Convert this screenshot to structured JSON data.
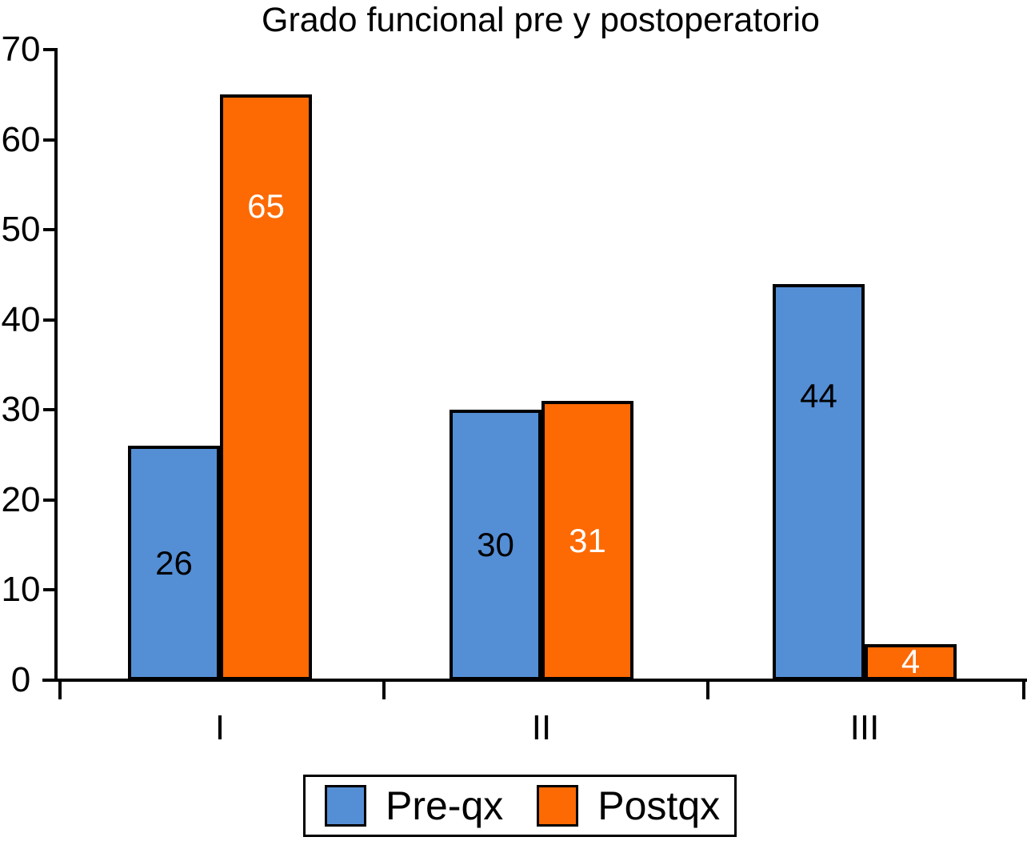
{
  "chart_data": {
    "type": "bar",
    "title": "Grado funcional pre y postoperatorio",
    "categories": [
      "I",
      "II",
      "III"
    ],
    "series": [
      {
        "name": "Pre-qx",
        "color": "#548ed5",
        "label_color": "#000000",
        "values": [
          26,
          30,
          44
        ]
      },
      {
        "name": "Postqx",
        "color": "#fd6902",
        "label_color": "#ffffff",
        "values": [
          65,
          31,
          4
        ]
      }
    ],
    "xlabel": "",
    "ylabel": "",
    "ylim": [
      0,
      70
    ],
    "yticks": [
      0,
      10,
      20,
      30,
      40,
      50,
      60,
      70
    ],
    "grid": false,
    "legend_position": "bottom",
    "bar_border_color": "#000000",
    "background_color": "#ffffff"
  }
}
